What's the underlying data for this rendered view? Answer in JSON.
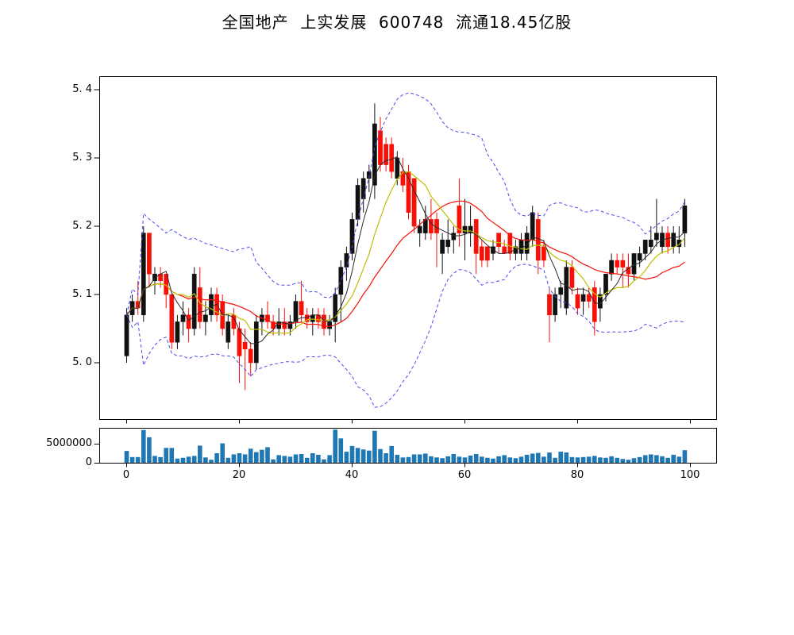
{
  "title": "全国地产  上实发展  600748  流通18.45亿股",
  "colors": {
    "up_candle": "#111111",
    "down_candle": "#f80f06",
    "ma_short": "#2a2a2a",
    "ma_mid": "#bfbf00",
    "ma_long": "#f80f06",
    "bollinger_band": "#4a4af0",
    "volume_bar": "#1f77b4",
    "axis": "#000000",
    "background": "#ffffff"
  },
  "main_axis": {
    "ylim": [
      4.917,
      5.42
    ],
    "yticks": [
      {
        "v": 5.0,
        "label": "5. 0"
      },
      {
        "v": 5.1,
        "label": "5. 1"
      },
      {
        "v": 5.2,
        "label": "5. 2"
      },
      {
        "v": 5.3,
        "label": "5. 3"
      },
      {
        "v": 5.4,
        "label": "5. 4"
      }
    ],
    "xlim": [
      -5,
      105
    ],
    "xticks": [
      {
        "v": 0,
        "label": "0"
      },
      {
        "v": 20,
        "label": "20"
      },
      {
        "v": 40,
        "label": "40"
      },
      {
        "v": 60,
        "label": "60"
      },
      {
        "v": 80,
        "label": "80"
      },
      {
        "v": 100,
        "label": "100"
      }
    ]
  },
  "volume_axis": {
    "ylim": [
      0,
      9170000
    ],
    "yticks": [
      {
        "v": 0,
        "label": "0"
      },
      {
        "v": 5000000,
        "label": "5000000"
      }
    ]
  },
  "chart_data": {
    "type": "candlestick+volume",
    "title": "全国地产  上实发展  600748  流通18.45亿股",
    "x_range": [
      0,
      99
    ],
    "open": [
      5.01,
      5.07,
      5.09,
      5.07,
      5.19,
      5.12,
      5.13,
      5.13,
      5.1,
      5.03,
      5.06,
      5.07,
      5.05,
      5.11,
      5.06,
      5.07,
      5.1,
      5.09,
      5.03,
      5.07,
      5.05,
      5.03,
      5.02,
      5.0,
      5.06,
      5.07,
      5.06,
      5.05,
      5.06,
      5.05,
      5.06,
      5.09,
      5.07,
      5.06,
      5.07,
      5.07,
      5.05,
      5.06,
      5.1,
      5.14,
      5.16,
      5.21,
      5.24,
      5.27,
      5.26,
      5.34,
      5.32,
      5.32,
      5.27,
      5.28,
      5.28,
      5.27,
      5.19,
      5.19,
      5.21,
      5.21,
      5.16,
      5.17,
      5.18,
      5.23,
      5.19,
      5.19,
      5.21,
      5.17,
      5.17,
      5.16,
      5.19,
      5.17,
      5.19,
      5.16,
      5.16,
      5.16,
      5.18,
      5.21,
      5.17,
      5.1,
      5.07,
      5.1,
      5.08,
      5.14,
      5.1,
      5.09,
      5.1,
      5.11,
      5.08,
      5.1,
      5.13,
      5.15,
      5.15,
      5.14,
      5.13,
      5.15,
      5.16,
      5.17,
      5.18,
      5.17,
      5.19,
      5.17,
      5.17,
      5.19
    ],
    "high": [
      5.08,
      5.1,
      5.12,
      5.2,
      5.19,
      5.14,
      5.14,
      5.13,
      5.1,
      5.07,
      5.09,
      5.08,
      5.14,
      5.14,
      5.09,
      5.11,
      5.11,
      5.1,
      5.07,
      5.08,
      5.06,
      5.05,
      5.03,
      5.07,
      5.08,
      5.09,
      5.07,
      5.08,
      5.08,
      5.07,
      5.1,
      5.12,
      5.08,
      5.08,
      5.08,
      5.08,
      5.07,
      5.11,
      5.15,
      5.17,
      5.22,
      5.27,
      5.28,
      5.29,
      5.38,
      5.36,
      5.33,
      5.33,
      5.31,
      5.3,
      5.29,
      5.27,
      5.21,
      5.23,
      5.24,
      5.22,
      5.19,
      5.21,
      5.2,
      5.27,
      5.24,
      5.23,
      5.21,
      5.18,
      5.17,
      5.18,
      5.19,
      5.18,
      5.19,
      5.18,
      5.19,
      5.2,
      5.23,
      5.22,
      5.18,
      5.11,
      5.11,
      5.12,
      5.15,
      5.15,
      5.11,
      5.11,
      5.11,
      5.12,
      5.11,
      5.13,
      5.16,
      5.16,
      5.16,
      5.16,
      5.16,
      5.17,
      5.18,
      5.2,
      5.24,
      5.2,
      5.2,
      5.2,
      5.2,
      5.24
    ],
    "low": [
      5.0,
      5.06,
      5.07,
      5.06,
      5.11,
      5.1,
      5.11,
      5.08,
      5.02,
      5.02,
      5.04,
      5.03,
      5.04,
      5.05,
      5.04,
      5.06,
      5.06,
      5.04,
      5.02,
      5.04,
      4.97,
      4.96,
      4.98,
      4.99,
      5.04,
      5.05,
      5.04,
      5.04,
      5.04,
      5.04,
      5.05,
      5.06,
      5.05,
      5.04,
      5.05,
      5.04,
      5.04,
      5.03,
      5.06,
      5.12,
      5.15,
      5.2,
      5.22,
      5.25,
      5.24,
      5.28,
      5.28,
      5.27,
      5.26,
      5.25,
      5.21,
      5.19,
      5.17,
      5.18,
      5.18,
      5.14,
      5.13,
      5.16,
      5.16,
      5.17,
      5.15,
      5.17,
      5.13,
      5.14,
      5.14,
      5.15,
      5.16,
      5.16,
      5.15,
      5.15,
      5.15,
      5.15,
      5.17,
      5.13,
      5.14,
      5.03,
      5.06,
      5.08,
      5.07,
      5.1,
      5.07,
      5.07,
      5.08,
      5.04,
      5.06,
      5.09,
      5.12,
      5.13,
      5.11,
      5.11,
      5.12,
      5.14,
      5.15,
      5.16,
      5.17,
      5.16,
      5.16,
      5.16,
      5.16,
      5.17
    ],
    "close": [
      5.07,
      5.09,
      5.08,
      5.19,
      5.13,
      5.13,
      5.12,
      5.1,
      5.03,
      5.06,
      5.07,
      5.05,
      5.13,
      5.06,
      5.07,
      5.1,
      5.07,
      5.05,
      5.06,
      5.05,
      5.01,
      5.02,
      5.0,
      5.06,
      5.07,
      5.06,
      5.05,
      5.06,
      5.05,
      5.06,
      5.09,
      5.07,
      5.06,
      5.07,
      5.06,
      5.05,
      5.06,
      5.1,
      5.14,
      5.16,
      5.21,
      5.26,
      5.27,
      5.28,
      5.35,
      5.29,
      5.29,
      5.28,
      5.3,
      5.26,
      5.22,
      5.2,
      5.2,
      5.21,
      5.19,
      5.19,
      5.18,
      5.18,
      5.19,
      5.19,
      5.2,
      5.2,
      5.16,
      5.15,
      5.15,
      5.17,
      5.17,
      5.16,
      5.16,
      5.17,
      5.18,
      5.19,
      5.22,
      5.15,
      5.15,
      5.07,
      5.1,
      5.11,
      5.14,
      5.11,
      5.08,
      5.1,
      5.09,
      5.06,
      5.1,
      5.13,
      5.15,
      5.14,
      5.14,
      5.13,
      5.16,
      5.16,
      5.18,
      5.18,
      5.19,
      5.19,
      5.17,
      5.19,
      5.18,
      5.23
    ],
    "volume": [
      3200000,
      1600000,
      1600000,
      8700000,
      6800000,
      1900000,
      1600000,
      4000000,
      4000000,
      1200000,
      1400000,
      1700000,
      1900000,
      4600000,
      1500000,
      900000,
      2600000,
      5200000,
      1400000,
      2300000,
      2600000,
      2300000,
      3800000,
      2900000,
      3500000,
      4200000,
      1000000,
      2100000,
      1900000,
      1700000,
      2300000,
      2400000,
      1400000,
      2600000,
      2200000,
      1000000,
      2100000,
      8800000,
      6500000,
      3000000,
      4500000,
      4000000,
      3600000,
      3300000,
      8500000,
      3700000,
      2600000,
      4500000,
      2200000,
      1500000,
      1600000,
      2300000,
      2300000,
      2500000,
      1800000,
      1500000,
      1300000,
      1800000,
      2400000,
      1700000,
      1500000,
      2000000,
      2400000,
      1700000,
      1400000,
      1200000,
      1800000,
      2100000,
      1500000,
      1300000,
      1700000,
      2200000,
      2500000,
      2700000,
      1700000,
      2800000,
      1400000,
      3000000,
      2800000,
      1600000,
      1500000,
      1600000,
      1700000,
      1900000,
      1500000,
      1400000,
      1800000,
      1400000,
      1100000,
      900000,
      1300000,
      1600000,
      2100000,
      2300000,
      2100000,
      1800000,
      1400000,
      2200000,
      1700000,
      3400000
    ],
    "overlays": {
      "ma_windows": [
        5,
        10,
        20
      ],
      "bollinger": {
        "window": 20,
        "mult": 2,
        "style": "dashed"
      }
    },
    "legend": "none",
    "grid": false
  }
}
